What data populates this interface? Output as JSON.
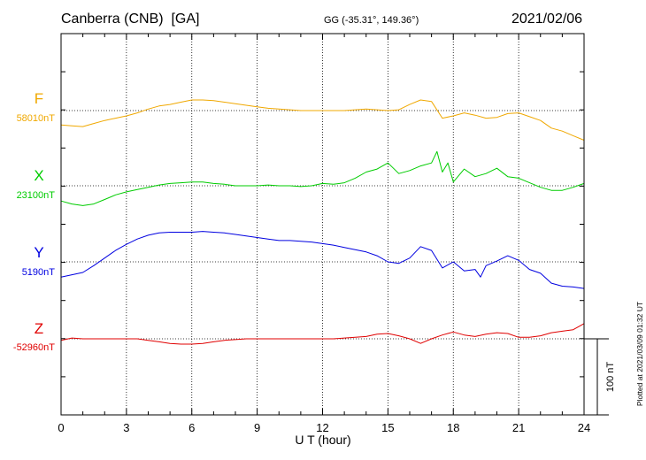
{
  "header": {
    "station": "Canberra (CNB)  [GA]",
    "coords": "GG (-35.31°, 149.36°)",
    "date": "2021/02/06"
  },
  "footer": {
    "plotted": "Plotted at 2021/03/09 01:32 UT"
  },
  "chart_data": {
    "type": "line",
    "title": "Canberra (CNB)  [GA]",
    "xlabel": "U T (hour)",
    "xlim": [
      0,
      24
    ],
    "xticks": [
      "0",
      "3",
      "6",
      "9",
      "12",
      "15",
      "18",
      "21",
      "24"
    ],
    "grid": true,
    "scale_bar": {
      "label": "100 nT",
      "value_nT": 100
    },
    "series": [
      {
        "name": "F",
        "baseline_label": "58010nT",
        "baseline": 58010,
        "color": "#f0a800",
        "x": [
          0,
          0.5,
          1,
          1.5,
          2,
          2.5,
          3,
          3.5,
          4,
          4.5,
          5,
          5.5,
          6,
          6.5,
          7,
          7.5,
          8,
          8.5,
          9,
          9.5,
          10,
          10.5,
          11,
          11.5,
          12,
          12.5,
          13,
          13.5,
          14,
          14.5,
          15,
          15.5,
          16,
          16.5,
          17,
          17.5,
          18,
          18.5,
          19,
          19.5,
          20,
          20.5,
          21,
          21.5,
          22,
          22.5,
          23,
          23.5,
          24
        ],
        "values": [
          57991,
          57990,
          57989,
          57993,
          57997,
          58000,
          58003,
          58007,
          58012,
          58016,
          58018,
          58021,
          58024,
          58024,
          58023,
          58021,
          58019,
          58017,
          58015,
          58013,
          58012,
          58011,
          58010,
          58010,
          58010,
          58010,
          58010,
          58011,
          58012,
          58011,
          58010,
          58011,
          58018,
          58024,
          58022,
          58000,
          58003,
          58007,
          58004,
          58000,
          58001,
          58006,
          58007,
          58002,
          57997,
          57987,
          57983,
          57977,
          57971
        ]
      },
      {
        "name": "X",
        "baseline_label": "23100nT",
        "baseline": 23100,
        "color": "#00cc00",
        "x": [
          0,
          0.5,
          1,
          1.5,
          2,
          2.5,
          3,
          3.5,
          4,
          4.5,
          5,
          5.5,
          6,
          6.5,
          7,
          7.5,
          8,
          8.5,
          9,
          9.5,
          10,
          10.5,
          11,
          11.5,
          12,
          12.5,
          13,
          13.5,
          14,
          14.5,
          15,
          15.5,
          16,
          16.5,
          17,
          17.25,
          17.5,
          17.75,
          18,
          18.5,
          19,
          19.5,
          20,
          20.5,
          21,
          21.5,
          22,
          22.5,
          23,
          23.5,
          24
        ],
        "values": [
          23080,
          23076,
          23074,
          23076,
          23082,
          23088,
          23092,
          23095,
          23098,
          23101,
          23103,
          23104,
          23105,
          23105,
          23103,
          23102,
          23100,
          23100,
          23100,
          23101,
          23100,
          23100,
          23099,
          23100,
          23103,
          23102,
          23104,
          23110,
          23118,
          23122,
          23130,
          23116,
          23120,
          23126,
          23130,
          23145,
          23118,
          23130,
          23105,
          23122,
          23112,
          23116,
          23123,
          23112,
          23110,
          23104,
          23098,
          23094,
          23094,
          23098,
          23103
        ]
      },
      {
        "name": "Y",
        "baseline_label": "5190nT",
        "baseline": 5190,
        "color": "#0000e0",
        "x": [
          0,
          0.5,
          1,
          1.5,
          2,
          2.5,
          3,
          3.5,
          4,
          4.5,
          5,
          5.5,
          6,
          6.5,
          7,
          7.5,
          8,
          8.5,
          9,
          9.5,
          10,
          10.5,
          11,
          11.5,
          12,
          12.5,
          13,
          13.5,
          14,
          14.5,
          15,
          15.5,
          16,
          16.5,
          17,
          17.5,
          18,
          18.5,
          19,
          19.25,
          19.5,
          20,
          20.5,
          21,
          21.5,
          22,
          22.5,
          23,
          23.5,
          24
        ],
        "values": [
          5170,
          5173,
          5176,
          5185,
          5195,
          5205,
          5213,
          5220,
          5225,
          5228,
          5229,
          5229,
          5229,
          5230,
          5229,
          5228,
          5226,
          5224,
          5222,
          5220,
          5218,
          5218,
          5217,
          5216,
          5214,
          5212,
          5209,
          5206,
          5203,
          5198,
          5190,
          5188,
          5195,
          5210,
          5205,
          5182,
          5190,
          5178,
          5180,
          5170,
          5185,
          5191,
          5198,
          5192,
          5180,
          5175,
          5162,
          5158,
          5157,
          5155
        ]
      },
      {
        "name": "Z",
        "baseline_label": "-52960nT",
        "baseline": -52960,
        "color": "#e00000",
        "x": [
          0,
          0.5,
          1,
          1.5,
          2,
          2.5,
          3,
          3.5,
          4,
          4.5,
          5,
          5.5,
          6,
          6.5,
          7,
          7.5,
          8,
          8.5,
          9,
          9.5,
          10,
          10.5,
          11,
          11.5,
          12,
          12.5,
          13,
          13.5,
          14,
          14.5,
          15,
          15.5,
          16,
          16.5,
          17,
          17.5,
          18,
          18.5,
          19,
          19.5,
          20,
          20.5,
          21,
          21.5,
          22,
          22.5,
          23,
          23.5,
          24
        ],
        "values": [
          -52962,
          -52959,
          -52960,
          -52960,
          -52960,
          -52960,
          -52960,
          -52960,
          -52962,
          -52964,
          -52966,
          -52967,
          -52967,
          -52966,
          -52964,
          -52962,
          -52961,
          -52960,
          -52960,
          -52960,
          -52960,
          -52960,
          -52960,
          -52960,
          -52960,
          -52960,
          -52959,
          -52958,
          -52957,
          -52954,
          -52953,
          -52956,
          -52960,
          -52966,
          -52960,
          -52955,
          -52951,
          -52955,
          -52957,
          -52954,
          -52952,
          -52953,
          -52958,
          -52958,
          -52956,
          -52952,
          -52950,
          -52948,
          -52940
        ]
      }
    ]
  }
}
